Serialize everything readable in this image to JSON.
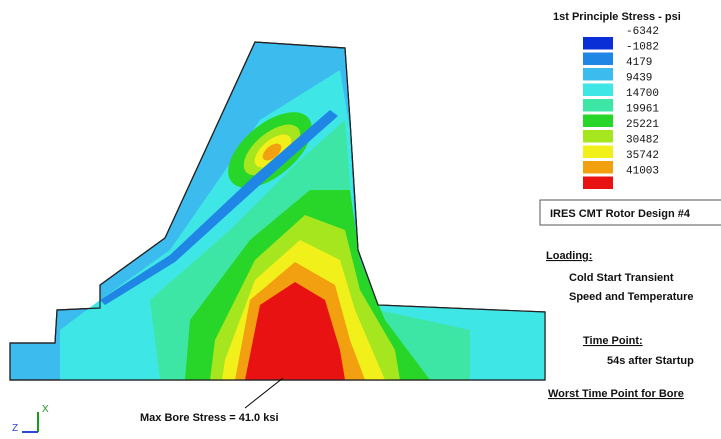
{
  "legend": {
    "title": "1st Principle Stress - psi",
    "entries": [
      {
        "label": -6342,
        "color": "#0b2fd6"
      },
      {
        "label": -1082,
        "color": "#1f86e6"
      },
      {
        "label": 4179,
        "color": "#3cbcee"
      },
      {
        "label": 9439,
        "color": "#3fe6e6"
      },
      {
        "label": 14700,
        "color": "#3ee6a6"
      },
      {
        "label": 19961,
        "color": "#27d628"
      },
      {
        "label": 25221,
        "color": "#a6e61f"
      },
      {
        "label": 30482,
        "color": "#f2f01a"
      },
      {
        "label": 35742,
        "color": "#f2a010"
      },
      {
        "label": 41003,
        "color": "#e81212"
      }
    ]
  },
  "design": "IRES CMT Rotor Design #4",
  "loading": {
    "heading": "Loading:",
    "lines": [
      "Cold Start Transient",
      "Speed and Temperature"
    ]
  },
  "time_point": {
    "heading": "Time Point:",
    "value": "54s after Startup"
  },
  "note": "Worst Time Point for Bore",
  "annotation": "Max Bore Stress = 41.0 ksi",
  "axes": {
    "vertical": "X",
    "horizontal": "Z"
  }
}
